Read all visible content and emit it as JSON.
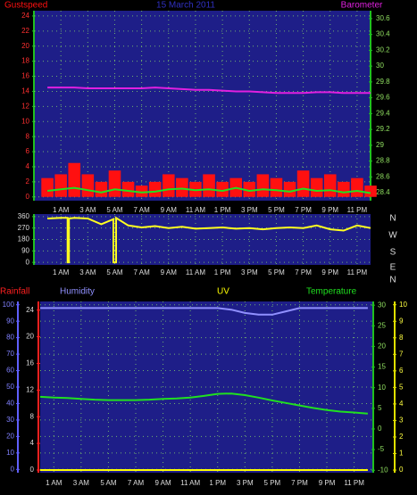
{
  "chart_data": [
    {
      "type": "bar",
      "title": "15 March 2011",
      "grid": true,
      "x": [
        0,
        1,
        2,
        3,
        4,
        5,
        6,
        7,
        8,
        9,
        10,
        11,
        12,
        13,
        14,
        15,
        16,
        17,
        18,
        19,
        20,
        21,
        22,
        23,
        24
      ],
      "xlim": [
        -1,
        24
      ],
      "xticks": [
        {
          "value": 1,
          "label": "1 AM"
        },
        {
          "value": 3,
          "label": "3 AM"
        },
        {
          "value": 5,
          "label": "5 AM"
        },
        {
          "value": 7,
          "label": "7 AM"
        },
        {
          "value": 9,
          "label": "9 AM"
        },
        {
          "value": 11,
          "label": "11 AM"
        },
        {
          "value": 13,
          "label": "1 PM"
        },
        {
          "value": 15,
          "label": "3 PM"
        },
        {
          "value": 17,
          "label": "5 PM"
        },
        {
          "value": 19,
          "label": "7 PM"
        },
        {
          "value": 21,
          "label": "9 PM"
        },
        {
          "value": 23,
          "label": "11 PM"
        }
      ],
      "ylim": [
        -0.5,
        24.7
      ],
      "yticks": [
        0,
        2,
        4,
        6,
        8,
        10,
        12,
        14,
        16,
        18,
        20,
        22,
        24
      ],
      "y2lim": [
        28.3,
        30.7
      ],
      "y2ticks": [
        28.4,
        28.6,
        28.8,
        29,
        29.2,
        29.4,
        29.6,
        29.8,
        30,
        30.2,
        30.4,
        30.6
      ],
      "series": [
        {
          "name": "Gustspeed",
          "type": "bar",
          "color": "#ff1010",
          "values": [
            2.5,
            3,
            4.5,
            3,
            2,
            3.5,
            2,
            1.5,
            2,
            3,
            2.5,
            2,
            3,
            2,
            2.5,
            2,
            3,
            2.5,
            2,
            3.5,
            2.5,
            3,
            2,
            2.5,
            1.5
          ]
        },
        {
          "type": "line",
          "color": "#20e020",
          "values": [
            0.8,
            1,
            1.2,
            0.9,
            0.6,
            1,
            0.8,
            0.6,
            0.7,
            1,
            1.1,
            0.9,
            1,
            0.8,
            1.2,
            0.8,
            1,
            0.9,
            0.7,
            1.1,
            0.8,
            0.9,
            0.6,
            0.8,
            0.5
          ]
        },
        {
          "name": "Barometer",
          "type": "line",
          "axis": "y2",
          "color": "#e020e0",
          "values": [
            29.73,
            29.73,
            29.73,
            29.72,
            29.72,
            29.72,
            29.72,
            29.72,
            29.73,
            29.72,
            29.71,
            29.7,
            29.7,
            29.69,
            29.68,
            29.68,
            29.67,
            29.66,
            29.66,
            29.66,
            29.67,
            29.67,
            29.66,
            29.66,
            29.66
          ]
        }
      ]
    },
    {
      "type": "line",
      "grid": true,
      "x": [
        0,
        1,
        1.5,
        1.5,
        1.6,
        1.6,
        2,
        3,
        4,
        4.9,
        4.9,
        5.1,
        5.1,
        6,
        7,
        8,
        9,
        10,
        11,
        12,
        13,
        14,
        15,
        16,
        17,
        18,
        19,
        20,
        21,
        22,
        23,
        24
      ],
      "xlim": [
        -1,
        24
      ],
      "xticks": [
        {
          "value": 1,
          "label": "1 AM"
        },
        {
          "value": 3,
          "label": "3 AM"
        },
        {
          "value": 5,
          "label": "5 AM"
        },
        {
          "value": 7,
          "label": "7 AM"
        },
        {
          "value": 9,
          "label": "9 AM"
        },
        {
          "value": 11,
          "label": "11 AM"
        },
        {
          "value": 13,
          "label": "1 PM"
        },
        {
          "value": 15,
          "label": "3 PM"
        },
        {
          "value": 17,
          "label": "5 PM"
        },
        {
          "value": 19,
          "label": "7 PM"
        },
        {
          "value": 21,
          "label": "9 PM"
        },
        {
          "value": 23,
          "label": "11 PM"
        }
      ],
      "ylim": [
        -20,
        380
      ],
      "yticks": [
        0,
        90,
        180,
        270,
        360
      ],
      "direction_labels": [
        "N",
        "W",
        "S",
        "E",
        "N"
      ],
      "series": [
        {
          "type": "line",
          "color": "#ffff20",
          "values": [
            345,
            350,
            350,
            0,
            0,
            345,
            350,
            345,
            300,
            340,
            0,
            0,
            350,
            290,
            275,
            285,
            270,
            280,
            265,
            270,
            275,
            265,
            270,
            260,
            270,
            275,
            270,
            290,
            260,
            250,
            290,
            270
          ]
        }
      ]
    },
    {
      "type": "line",
      "grid": true,
      "x": [
        0,
        1,
        2,
        3,
        4,
        5,
        6,
        7,
        8,
        9,
        10,
        11,
        12,
        13,
        14,
        15,
        16,
        17,
        18,
        19,
        20,
        21,
        22,
        23,
        24
      ],
      "xlim": [
        0,
        24.4
      ],
      "xticks": [
        {
          "value": 1,
          "label": "1 AM"
        },
        {
          "value": 3,
          "label": "3 AM"
        },
        {
          "value": 5,
          "label": "5 AM"
        },
        {
          "value": 7,
          "label": "7 AM"
        },
        {
          "value": 9,
          "label": "9 AM"
        },
        {
          "value": 11,
          "label": "11 AM"
        },
        {
          "value": 13,
          "label": "1 PM"
        },
        {
          "value": 15,
          "label": "3 PM"
        },
        {
          "value": 17,
          "label": "5 PM"
        },
        {
          "value": 19,
          "label": "7 PM"
        },
        {
          "value": 21,
          "label": "9 PM"
        },
        {
          "value": 23,
          "label": "11 PM"
        }
      ],
      "ylim": [
        -2,
        102
      ],
      "yticks": [
        0,
        10,
        20,
        30,
        40,
        50,
        60,
        70,
        80,
        90,
        100
      ],
      "y2lim": [
        -0.4,
        25.3
      ],
      "y2ticks": [
        0,
        4,
        8,
        12,
        16,
        20,
        24
      ],
      "y3lim": [
        -10.6,
        30.9
      ],
      "y3ticks": [
        -10,
        -5,
        0,
        5,
        10,
        15,
        20,
        25,
        30
      ],
      "y4lim": [
        -0.16,
        10.2
      ],
      "y4ticks": [
        0,
        1,
        2,
        3,
        4,
        5,
        6,
        7,
        8,
        9,
        10
      ],
      "series": [
        {
          "name": "Rainfall",
          "type": "line",
          "axis": "y2",
          "color": "#ff2020",
          "values": [
            0,
            0,
            0,
            0,
            0,
            0,
            0,
            0,
            0,
            0,
            0,
            0,
            0,
            0,
            0,
            0,
            0,
            0,
            0,
            0,
            0,
            0,
            0,
            0,
            0
          ]
        },
        {
          "name": "Humidity",
          "type": "line",
          "color": "#9090ff",
          "values": [
            98,
            98,
            98,
            98,
            98,
            98,
            98,
            98,
            98,
            98,
            98,
            98,
            98,
            98,
            97,
            95,
            94,
            94,
            96,
            98,
            98,
            98,
            98,
            98,
            98
          ]
        },
        {
          "name": "UV",
          "type": "line",
          "axis": "y4",
          "color": "#ffff00",
          "values": [
            0,
            0,
            0,
            0,
            0,
            0,
            0,
            0,
            0,
            0,
            0,
            0,
            0,
            0,
            0,
            0,
            0,
            0,
            0,
            0,
            0,
            0,
            0,
            0,
            0
          ]
        },
        {
          "name": "Temperature",
          "type": "line",
          "axis": "y3",
          "color": "#20e020",
          "values": [
            7.8,
            7.6,
            7.5,
            7.3,
            7.1,
            7,
            7,
            7,
            7.1,
            7.3,
            7.4,
            7.6,
            8,
            8.5,
            8.6,
            8.2,
            7.6,
            6.9,
            6.3,
            5.7,
            5.1,
            4.6,
            4.2,
            4,
            3.7
          ]
        }
      ]
    }
  ]
}
